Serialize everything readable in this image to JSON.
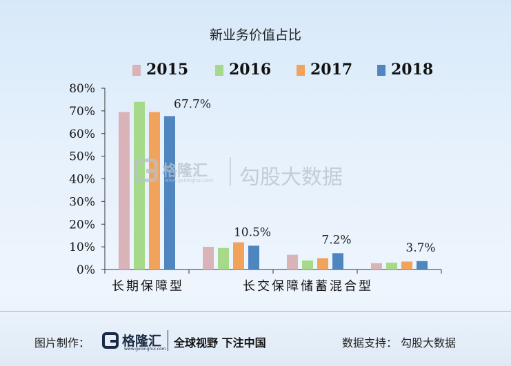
{
  "chart_data": {
    "type": "bar",
    "title": "新业务价值占比",
    "categories": [
      "长期保障型",
      "长交保障储蓄混合型",
      "",
      ""
    ],
    "series": [
      {
        "name": "2015",
        "color": "#d9b3b8",
        "values": [
          69.5,
          10.0,
          6.5,
          2.8
        ]
      },
      {
        "name": "2016",
        "color": "#a6d98a",
        "values": [
          74.0,
          9.5,
          4.0,
          3.0
        ]
      },
      {
        "name": "2017",
        "color": "#f2a35b",
        "values": [
          69.5,
          12.0,
          5.0,
          3.5
        ]
      },
      {
        "name": "2018",
        "color": "#4f86c0",
        "values": [
          67.7,
          10.5,
          7.2,
          3.7
        ]
      }
    ],
    "data_labels": [
      "67.7%",
      "10.5%",
      "7.2%",
      "3.7%"
    ],
    "ylim": [
      0,
      80
    ],
    "yticks": [
      "0%",
      "10%",
      "20%",
      "30%",
      "40%",
      "50%",
      "60%",
      "70%",
      "80%"
    ],
    "xlabel": "",
    "ylabel": "",
    "legend_position": "top",
    "grid": false
  },
  "watermark": {
    "brand": "格隆汇",
    "url": "www.gelonghui.com",
    "text": "勾股大数据"
  },
  "footer": {
    "maker_label": "图片制作：",
    "brand": "格隆汇",
    "brand_url": "www.gelonghui.com",
    "slogan": "全球视野 下注中国",
    "support": "数据支持：  勾股大数据"
  }
}
